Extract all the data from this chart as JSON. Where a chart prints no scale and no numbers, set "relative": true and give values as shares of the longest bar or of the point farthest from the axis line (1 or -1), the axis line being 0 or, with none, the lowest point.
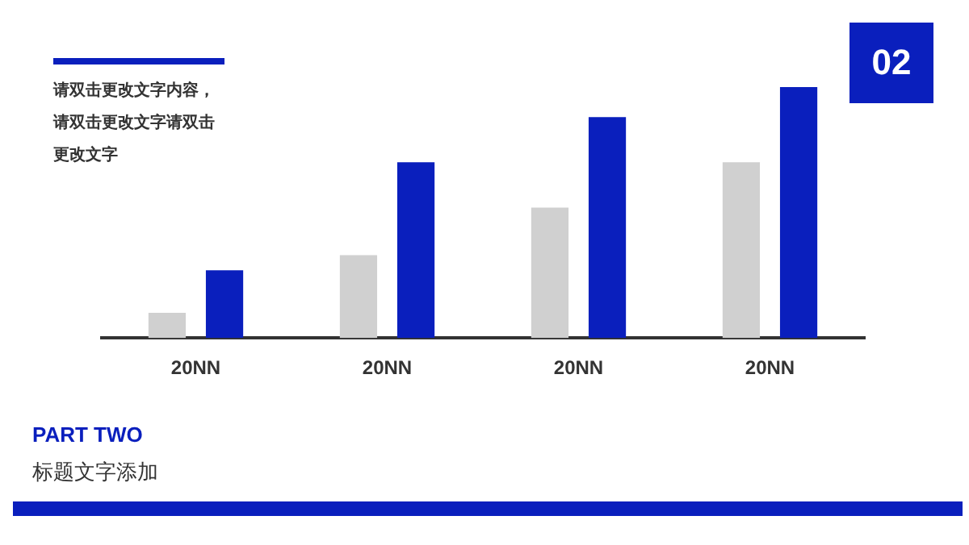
{
  "chart_data": {
    "type": "bar",
    "title": "PART TWO",
    "subtitle": "标题文字添加",
    "relative": true,
    "annotations": [
      "请双击更改文字内容，请双击更改文字请双击更改文字",
      "02"
    ],
    "categories": [
      "20NN",
      "20NN",
      "20NN",
      "20NN"
    ],
    "series": [
      {
        "color": "#d0d0d0",
        "values": [
          0.1,
          0.33,
          0.52,
          0.7
        ]
      },
      {
        "color": "#0a1fbd",
        "values": [
          0.27,
          0.7,
          0.88,
          1
        ]
      }
    ],
    "grid": false,
    "legend": false
  }
}
